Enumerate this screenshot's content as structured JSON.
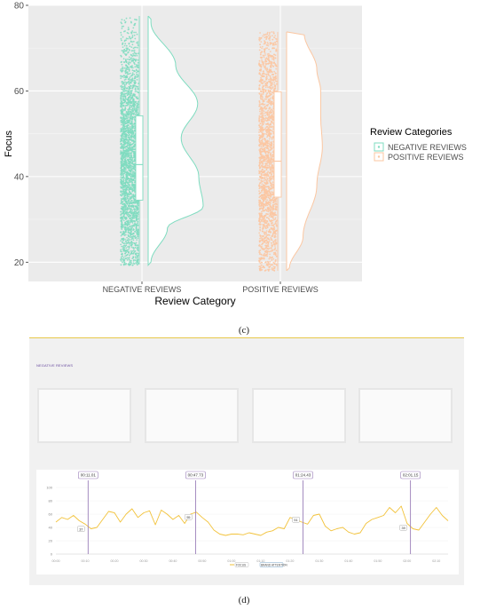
{
  "chart_data": [
    {
      "type": "raincloud",
      "ylabel": "Focus",
      "xlabel": "Review Category",
      "ylim": [
        15.5,
        80
      ],
      "yticks": [
        20,
        40,
        60,
        80
      ],
      "legend": {
        "title": "Review Categories",
        "placement": "right",
        "entries": [
          {
            "label": "NEGATIVE REVIEWS",
            "color": "#7fdcc0"
          },
          {
            "label": "POSITIVE REVIEWS",
            "color": "#fbc7a2"
          }
        ]
      },
      "series": [
        {
          "category": "NEGATIVE REVIEWS",
          "color": "#7fdcc0",
          "min": 19.3,
          "max": 77.5,
          "box": {
            "q1": 34.5,
            "median": 42.8,
            "q3": 54.2,
            "whisker_low": 19.5,
            "whisker_high": 77.5
          },
          "density_peaks": [
            {
              "y": 76,
              "w": 0.05
            },
            {
              "y": 66,
              "w": 0.5
            },
            {
              "y": 57,
              "w": 0.9
            },
            {
              "y": 49,
              "w": 0.6
            },
            {
              "y": 40,
              "w": 0.92
            },
            {
              "y": 33,
              "w": 1.0
            },
            {
              "y": 28,
              "w": 0.35
            },
            {
              "y": 20,
              "w": 0.05
            }
          ]
        },
        {
          "category": "POSITIVE REVIEWS",
          "color": "#fbc7a2",
          "min": 18.0,
          "max": 73.8,
          "box": {
            "q1": 35.2,
            "median": 43.6,
            "q3": 59.8,
            "whisker_low": 18.0,
            "whisker_high": 73.8
          },
          "density_peaks": [
            {
              "y": 73.5,
              "w": 0.32
            },
            {
              "y": 65,
              "w": 0.55
            },
            {
              "y": 60,
              "w": 0.62
            },
            {
              "y": 54,
              "w": 0.62
            },
            {
              "y": 47,
              "w": 0.65
            },
            {
              "y": 38,
              "w": 0.55
            },
            {
              "y": 26,
              "w": 0.3
            },
            {
              "y": 18.5,
              "w": 0.05
            }
          ]
        }
      ]
    },
    {
      "type": "line",
      "title": "NEGATIVE REVIEWS",
      "ylim": [
        0,
        100
      ],
      "yticks": [
        "100",
        "80",
        "60",
        "40",
        "20",
        "0"
      ],
      "xticks": [
        "00:00",
        "00:10",
        "00:20",
        "00:30",
        "00:40",
        "00:50",
        "01:00",
        "01:10",
        "01:20",
        "01:30",
        "01:40",
        "01:50",
        "02:00",
        "02:10"
      ],
      "timestamps": [
        {
          "label": "00:11.01",
          "t": 11.01,
          "value_label": "37",
          "value": 37
        },
        {
          "label": "00:47.73",
          "t": 47.73,
          "value_label": "55",
          "value": 55
        },
        {
          "label": "01:24.43",
          "t": 84.43,
          "value_label": "51",
          "value": 51
        },
        {
          "label": "02:01.15",
          "t": 121.15,
          "value_label": "39",
          "value": 39
        }
      ],
      "legend": {
        "placement": "bottom",
        "entries": [
          "FOCUS",
          "BRAND ATTENTION"
        ]
      },
      "line_color": "#f2c23a",
      "marker_color": "#9b7fb9",
      "x": [
        0,
        2,
        4,
        6,
        8,
        10,
        12,
        14,
        16,
        18,
        20,
        22,
        24,
        26,
        28,
        30,
        32,
        34,
        36,
        38,
        40,
        42,
        44,
        46,
        48,
        50,
        52,
        54,
        56,
        58,
        60,
        62,
        64,
        66,
        68,
        70,
        72,
        74,
        76,
        78,
        80,
        82,
        84,
        86,
        88,
        90,
        92,
        94,
        96,
        98,
        100,
        102,
        104,
        106,
        108,
        110,
        112,
        114,
        116,
        118,
        120,
        122,
        124,
        126,
        128,
        130,
        132,
        134
      ],
      "values": [
        48,
        55,
        52,
        58,
        50,
        45,
        38,
        40,
        52,
        64,
        62,
        48,
        60,
        68,
        55,
        62,
        65,
        44,
        66,
        60,
        52,
        58,
        46,
        60,
        63,
        55,
        48,
        36,
        30,
        28,
        30,
        30,
        29,
        32,
        30,
        28,
        33,
        35,
        40,
        38,
        55,
        52,
        48,
        45,
        58,
        60,
        42,
        35,
        38,
        40,
        33,
        30,
        32,
        46,
        52,
        55,
        58,
        70,
        62,
        72,
        46,
        38,
        36,
        48,
        60,
        70,
        58,
        50
      ]
    }
  ]
}
